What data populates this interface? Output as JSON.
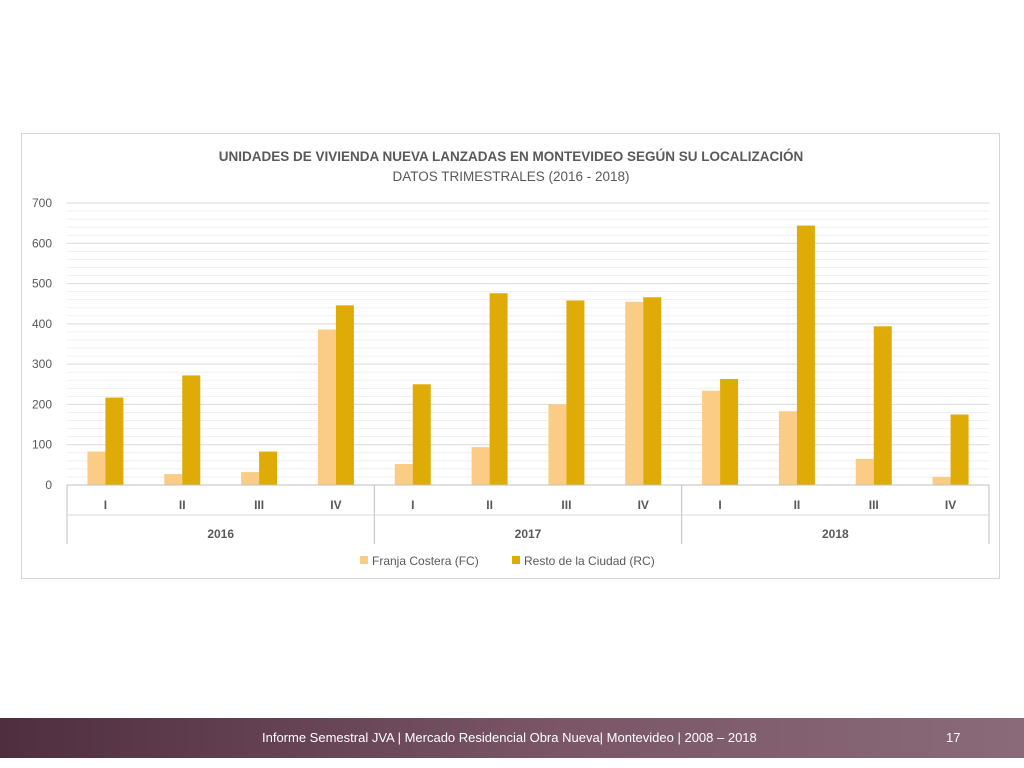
{
  "footer": {
    "text": "Informe Semestral JVA | Mercado Residencial Obra Nueva| Montevideo | 2008 – 2018",
    "page_number": "17"
  },
  "chart_data": {
    "type": "bar",
    "title": "UNIDADES DE VIVIENDA NUEVA LANZADAS EN MONTEVIDEO SEGÚN SU LOCALIZACIÓN",
    "subtitle": "DATOS TRIMESTRALES (2016 - 2018)",
    "ylim": [
      0,
      700
    ],
    "yticks": [
      0,
      100,
      200,
      300,
      400,
      500,
      600,
      700
    ],
    "grid": true,
    "legend_position": "bottom",
    "categories": [
      "I",
      "II",
      "III",
      "IV",
      "I",
      "II",
      "III",
      "IV",
      "I",
      "II",
      "III",
      "IV"
    ],
    "groups": [
      {
        "label": "2016",
        "start": 0,
        "count": 4
      },
      {
        "label": "2017",
        "start": 4,
        "count": 4
      },
      {
        "label": "2018",
        "start": 8,
        "count": 4
      }
    ],
    "series": [
      {
        "name": "Franja Costera (FC)",
        "color": "#fbcc86",
        "values": [
          83,
          27,
          32,
          386,
          52,
          94,
          200,
          455,
          234,
          183,
          65,
          20
        ]
      },
      {
        "name": "Resto de la Ciudad (RC)",
        "color": "#deab07",
        "values": [
          217,
          272,
          83,
          446,
          250,
          476,
          458,
          466,
          263,
          644,
          394,
          175
        ]
      }
    ]
  }
}
